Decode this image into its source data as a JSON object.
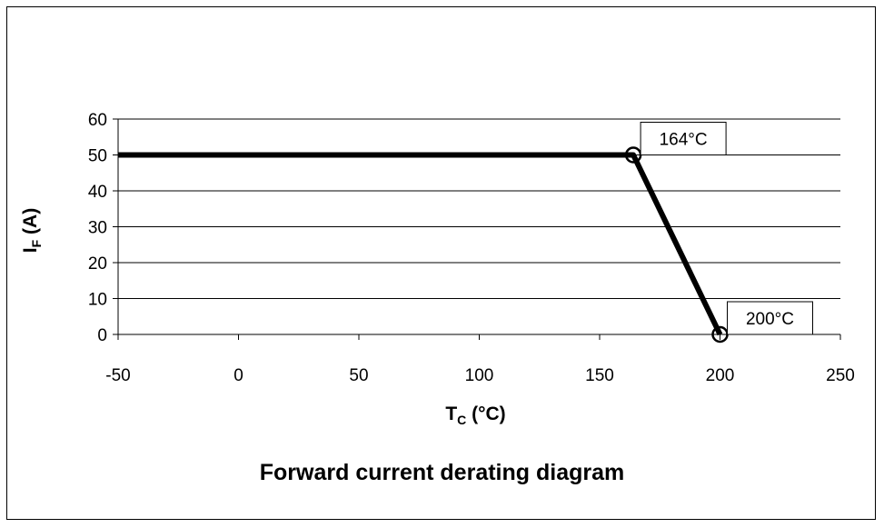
{
  "caption": "Forward current derating diagram",
  "chart_data": {
    "type": "line",
    "title": "",
    "xlabel": {
      "main": "T",
      "sub": "C",
      "suffix": " (°C)"
    },
    "ylabel": {
      "main": "I",
      "sub": "F",
      "suffix": " (A)"
    },
    "xlim": [
      -50,
      250
    ],
    "ylim": [
      0,
      60
    ],
    "x_ticks": [
      -50,
      0,
      50,
      100,
      150,
      200,
      250
    ],
    "y_ticks": [
      0,
      10,
      20,
      30,
      40,
      50,
      60
    ],
    "grid": {
      "horizontal": true,
      "vertical": false
    },
    "legend": "none",
    "series": [
      {
        "x": [
          -50,
          164,
          200
        ],
        "y": [
          50,
          50,
          0
        ],
        "color": "#000000"
      }
    ],
    "annotations": [
      {
        "x": 164,
        "y": 50,
        "text": "164°C"
      },
      {
        "x": 200,
        "y": 0,
        "text": "200°C"
      }
    ]
  }
}
